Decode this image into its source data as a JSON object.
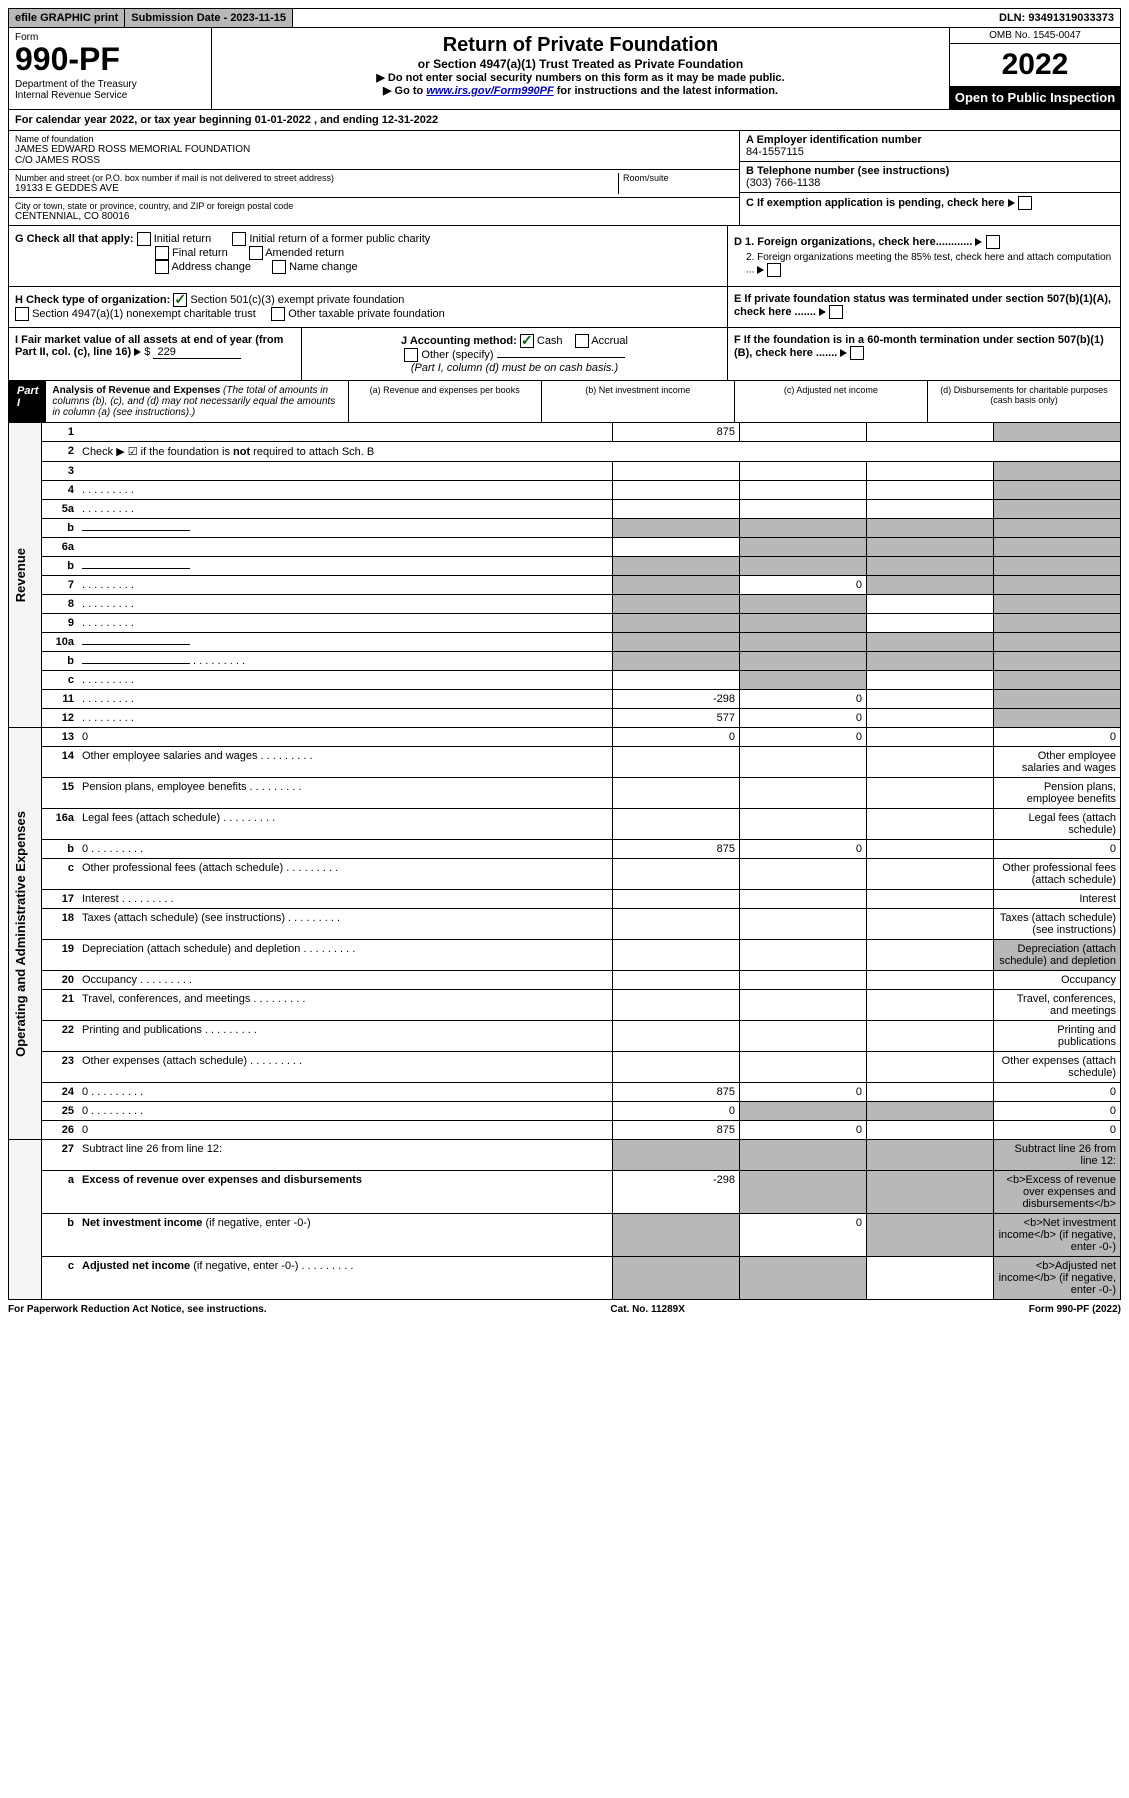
{
  "topbar": {
    "efile": "efile GRAPHIC print",
    "submission": "Submission Date - 2023-11-15",
    "dln": "DLN: 93491319033373"
  },
  "header": {
    "form_label": "Form",
    "form_number": "990-PF",
    "dept": "Department of the Treasury\nInternal Revenue Service",
    "title": "Return of Private Foundation",
    "subtitle": "or Section 4947(a)(1) Trust Treated as Private Foundation",
    "instr1": "▶ Do not enter social security numbers on this form as it may be made public.",
    "instr2_pre": "▶ Go to ",
    "instr2_link": "www.irs.gov/Form990PF",
    "instr2_post": " for instructions and the latest information.",
    "omb": "OMB No. 1545-0047",
    "year": "2022",
    "open": "Open to Public Inspection"
  },
  "cal_year": "For calendar year 2022, or tax year beginning 01-01-2022                    , and ending 12-31-2022",
  "info": {
    "name_label": "Name of foundation",
    "name": "JAMES EDWARD ROSS MEMORIAL FOUNDATION\nC/O JAMES ROSS",
    "addr_label": "Number and street (or P.O. box number if mail is not delivered to street address)",
    "addr": "19133 E GEDDES AVE",
    "room_label": "Room/suite",
    "city_label": "City or town, state or province, country, and ZIP or foreign postal code",
    "city": "CENTENNIAL, CO  80016",
    "ein_label": "A Employer identification number",
    "ein": "84-1557115",
    "phone_label": "B Telephone number (see instructions)",
    "phone": "(303) 766-1138",
    "c_label": "C If exemption application is pending, check here"
  },
  "g": {
    "label": "G Check all that apply:",
    "opts": [
      "Initial return",
      "Initial return of a former public charity",
      "Final return",
      "Amended return",
      "Address change",
      "Name change"
    ]
  },
  "d": {
    "d1": "D 1. Foreign organizations, check here............",
    "d2": "2. Foreign organizations meeting the 85% test, check here and attach computation ...",
    "e": "E  If private foundation status was terminated under section 507(b)(1)(A), check here .......",
    "f": "F  If the foundation is in a 60-month termination under section 507(b)(1)(B), check here ......."
  },
  "h": {
    "label": "H Check type of organization:",
    "opt1": "Section 501(c)(3) exempt private foundation",
    "opt2": "Section 4947(a)(1) nonexempt charitable trust",
    "opt3": "Other taxable private foundation"
  },
  "i": {
    "label": "I Fair market value of all assets at end of year (from Part II, col. (c), line 16)",
    "value": "229"
  },
  "j": {
    "label": "J Accounting method:",
    "cash": "Cash",
    "accrual": "Accrual",
    "other": "Other (specify)",
    "note": "(Part I, column (d) must be on cash basis.)"
  },
  "part1": {
    "badge": "Part I",
    "title": "Analysis of Revenue and Expenses",
    "title_note": " (The total of amounts in columns (b), (c), and (d) may not necessarily equal the amounts in column (a) (see instructions).)",
    "col_a": "(a)    Revenue and expenses per books",
    "col_b": "(b)    Net investment income",
    "col_c": "(c)   Adjusted net income",
    "col_d": "(d)   Disbursements for charitable purposes (cash basis only)"
  },
  "sidebars": {
    "revenue": "Revenue",
    "expenses": "Operating and Administrative Expenses"
  },
  "rows": [
    {
      "n": "1",
      "d": "",
      "a": "875",
      "b": "",
      "c": "",
      "dg": true
    },
    {
      "n": "2",
      "d": "Check ▶ ☑ if the foundation is <b>not</b> required to attach Sch. B",
      "nocols": true
    },
    {
      "n": "3",
      "d": "",
      "a": "",
      "b": "",
      "c": "",
      "dg": true
    },
    {
      "n": "4",
      "d": "",
      "a": "",
      "b": "",
      "c": "",
      "dg": true,
      "dots": true
    },
    {
      "n": "5a",
      "d": "",
      "a": "",
      "b": "",
      "c": "",
      "dg": true,
      "dots": true
    },
    {
      "n": "b",
      "d": "",
      "half": true,
      "a": "",
      "b": "",
      "c": "",
      "ag": true,
      "bg": true,
      "cg": true,
      "dg": true
    },
    {
      "n": "6a",
      "d": "",
      "a": "",
      "b": "",
      "c": "",
      "bg": true,
      "cg": true,
      "dg": true
    },
    {
      "n": "b",
      "d": "",
      "half": true,
      "a": "",
      "b": "",
      "c": "",
      "ag": true,
      "bg": true,
      "cg": true,
      "dg": true
    },
    {
      "n": "7",
      "d": "",
      "a": "",
      "b": "0",
      "c": "",
      "ag": true,
      "cg": true,
      "dg": true,
      "dots": true
    },
    {
      "n": "8",
      "d": "",
      "a": "",
      "b": "",
      "c": "",
      "ag": true,
      "bg": true,
      "dg": true,
      "dots": true
    },
    {
      "n": "9",
      "d": "",
      "a": "",
      "b": "",
      "c": "",
      "ag": true,
      "bg": true,
      "dg": true,
      "dots": true
    },
    {
      "n": "10a",
      "d": "",
      "half": true,
      "a": "",
      "b": "",
      "c": "",
      "ag": true,
      "bg": true,
      "cg": true,
      "dg": true
    },
    {
      "n": "b",
      "d": "",
      "half": true,
      "a": "",
      "b": "",
      "c": "",
      "ag": true,
      "bg": true,
      "cg": true,
      "dg": true,
      "dots": true
    },
    {
      "n": "c",
      "d": "",
      "a": "",
      "b": "",
      "c": "",
      "bg": true,
      "dg": true,
      "dots": true
    },
    {
      "n": "11",
      "d": "",
      "a": "-298",
      "b": "0",
      "c": "",
      "dg": true,
      "dots": true
    },
    {
      "n": "12",
      "d": "",
      "a": "577",
      "b": "0",
      "c": "",
      "dg": true,
      "dots": true
    }
  ],
  "rows2": [
    {
      "n": "13",
      "d": "0",
      "a": "0",
      "b": "0",
      "c": ""
    },
    {
      "n": "14",
      "d": "Other employee salaries and wages",
      "dots": true
    },
    {
      "n": "15",
      "d": "Pension plans, employee benefits",
      "dots": true
    },
    {
      "n": "16a",
      "d": "Legal fees (attach schedule)",
      "dots": true
    },
    {
      "n": "b",
      "d": "0",
      "a": "875",
      "b": "0",
      "c": "",
      "dots": true
    },
    {
      "n": "c",
      "d": "Other professional fees (attach schedule)",
      "dots": true
    },
    {
      "n": "17",
      "d": "Interest",
      "dots": true
    },
    {
      "n": "18",
      "d": "Taxes (attach schedule) (see instructions)",
      "dots": true
    },
    {
      "n": "19",
      "d": "Depreciation (attach schedule) and depletion",
      "dg": true,
      "dots": true
    },
    {
      "n": "20",
      "d": "Occupancy",
      "dots": true
    },
    {
      "n": "21",
      "d": "Travel, conferences, and meetings",
      "dots": true
    },
    {
      "n": "22",
      "d": "Printing and publications",
      "dots": true
    },
    {
      "n": "23",
      "d": "Other expenses (attach schedule)",
      "dots": true
    },
    {
      "n": "24",
      "d": "0",
      "a": "875",
      "b": "0",
      "c": "",
      "dots": true
    },
    {
      "n": "25",
      "d": "0",
      "a": "0",
      "b": "",
      "c": "",
      "bg": true,
      "cg": true,
      "dots": true
    },
    {
      "n": "26",
      "d": "0",
      "a": "875",
      "b": "0",
      "c": ""
    }
  ],
  "rows3": [
    {
      "n": "27",
      "d": "Subtract line 26 from line 12:",
      "ag": true,
      "bg": true,
      "cg": true,
      "dg": true
    },
    {
      "n": "a",
      "d": "<b>Excess of revenue over expenses and disbursements</b>",
      "a": "-298",
      "bg": true,
      "cg": true,
      "dg": true
    },
    {
      "n": "b",
      "d": "<b>Net investment income</b> (if negative, enter -0-)",
      "b": "0",
      "ag": true,
      "cg": true,
      "dg": true
    },
    {
      "n": "c",
      "d": "<b>Adjusted net income</b> (if negative, enter -0-)",
      "ag": true,
      "bg": true,
      "dg": true,
      "dots": true
    }
  ],
  "footer": {
    "left": "For Paperwork Reduction Act Notice, see instructions.",
    "mid": "Cat. No. 11289X",
    "right": "Form 990-PF (2022)"
  }
}
